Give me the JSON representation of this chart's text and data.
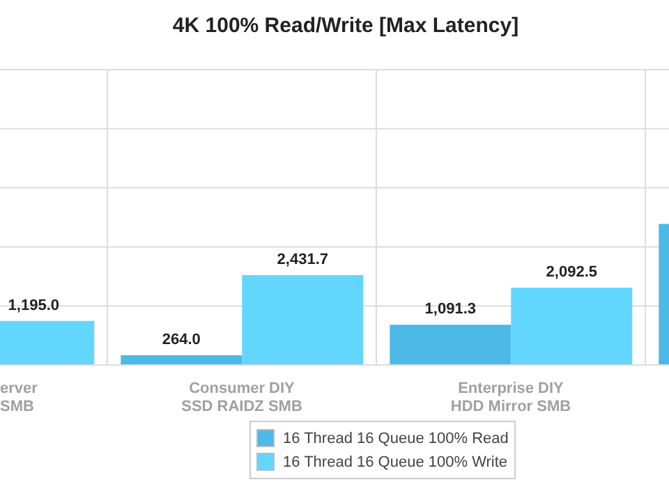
{
  "chart_data": {
    "type": "bar",
    "title": "4K 100% Read/Write [Max Latency]",
    "categories": [
      "erver\nSMB",
      "Consumer DIY\nSSD RAIDZ SMB",
      "Enterprise DIY\nHDD Mirror SMB",
      null
    ],
    "series": [
      {
        "name": "16 Thread 16 Queue 100% Read",
        "color": "#4cb9e6",
        "values": [
          null,
          264.0,
          1091.3,
          3820
        ],
        "value_labels": [
          null,
          "264.0",
          "1,091.3",
          null
        ]
      },
      {
        "name": "16 Thread 16 Queue 100% Write",
        "color": "#62d6fe",
        "values": [
          1195.0,
          2431.7,
          2092.5,
          null
        ],
        "value_labels": [
          "1,195.0",
          "2,431.7",
          "2,092.5",
          null
        ]
      }
    ],
    "ylim": [
      0,
      8000
    ],
    "yticks": [
      {
        "value": 0,
        "label": null
      },
      {
        "value": 1600,
        "label": null
      },
      {
        "value": 3200,
        "label": null
      },
      {
        "value": 4800,
        "label": null
      },
      {
        "value": 6400,
        "label": null
      },
      {
        "value": 8000,
        "label": null
      }
    ],
    "tick_labels": "x",
    "grid": true,
    "legend": "bottom"
  }
}
